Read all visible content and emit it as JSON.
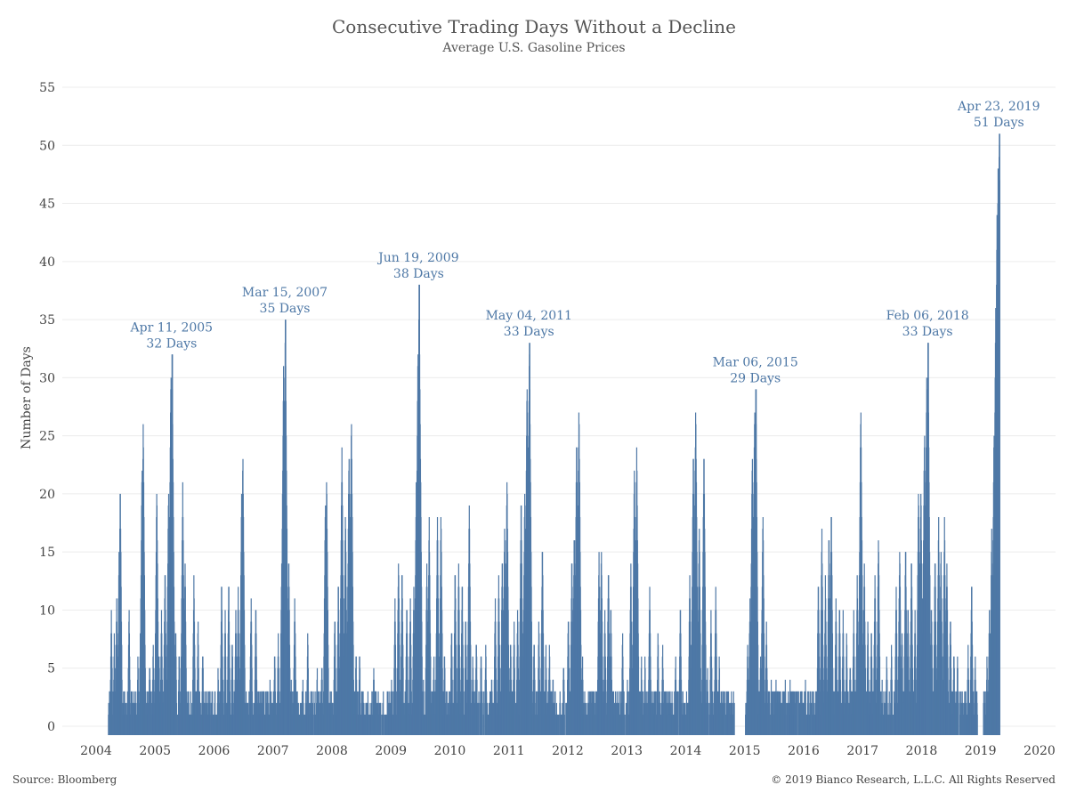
{
  "chart_data": {
    "type": "bar",
    "title": "Consecutive Trading Days Without a Decline",
    "subtitle": "Average U.S. Gasoline Prices",
    "ylabel": "Number of Days",
    "xlabel": "",
    "ylim": [
      0,
      55
    ],
    "xlim": [
      2004.0,
      2020.0
    ],
    "y_ticks": [
      "0",
      "5",
      "10",
      "15",
      "20",
      "25",
      "30",
      "35",
      "40",
      "45",
      "50",
      "55"
    ],
    "x_ticks": [
      "2004",
      "2005",
      "2006",
      "2007",
      "2008",
      "2009",
      "2010",
      "2011",
      "2012",
      "2013",
      "2014",
      "2015",
      "2016",
      "2017",
      "2018",
      "2019",
      "2020"
    ],
    "grid": true,
    "color": "#4e78a6",
    "peaks": [
      {
        "x": 2005.28,
        "y": 32,
        "date": "Apr 11, 2005",
        "days": "32 Days"
      },
      {
        "x": 2007.2,
        "y": 35,
        "date": "Mar 15, 2007",
        "days": "35 Days"
      },
      {
        "x": 2009.47,
        "y": 38,
        "date": "Jun 19, 2009",
        "days": "38 Days"
      },
      {
        "x": 2011.34,
        "y": 33,
        "date": "May 04, 2011",
        "days": "33 Days"
      },
      {
        "x": 2015.18,
        "y": 29,
        "date": "Mar 06, 2015",
        "days": "29 Days"
      },
      {
        "x": 2018.1,
        "y": 33,
        "date": "Feb 06, 2018",
        "days": "33 Days"
      },
      {
        "x": 2019.31,
        "y": 51,
        "date": "Apr 23, 2019",
        "days": "51 Days"
      }
    ],
    "series_points": [
      [
        2004.22,
        3
      ],
      [
        2004.25,
        10
      ],
      [
        2004.3,
        8
      ],
      [
        2004.34,
        11
      ],
      [
        2004.38,
        15
      ],
      [
        2004.4,
        21
      ],
      [
        2004.42,
        3
      ],
      [
        2004.55,
        10
      ],
      [
        2004.58,
        1
      ],
      [
        2004.66,
        3
      ],
      [
        2004.7,
        6
      ],
      [
        2004.74,
        8
      ],
      [
        2004.77,
        23
      ],
      [
        2004.79,
        26
      ],
      [
        2004.86,
        3
      ],
      [
        2004.9,
        6
      ],
      [
        2004.96,
        7
      ],
      [
        2005.02,
        21
      ],
      [
        2005.06,
        6
      ],
      [
        2005.1,
        10
      ],
      [
        2005.16,
        14
      ],
      [
        2005.22,
        21
      ],
      [
        2005.26,
        31
      ],
      [
        2005.28,
        32
      ],
      [
        2005.34,
        9
      ],
      [
        2005.4,
        7
      ],
      [
        2005.46,
        21
      ],
      [
        2005.5,
        14
      ],
      [
        2005.56,
        3
      ],
      [
        2005.65,
        13
      ],
      [
        2005.72,
        9
      ],
      [
        2005.8,
        7
      ],
      [
        2005.9,
        3
      ],
      [
        2005.98,
        1
      ],
      [
        2006.06,
        5
      ],
      [
        2006.12,
        13
      ],
      [
        2006.18,
        10
      ],
      [
        2006.24,
        13
      ],
      [
        2006.3,
        8
      ],
      [
        2006.36,
        10
      ],
      [
        2006.4,
        12
      ],
      [
        2006.46,
        21
      ],
      [
        2006.48,
        24
      ],
      [
        2006.55,
        2
      ],
      [
        2006.62,
        11
      ],
      [
        2006.7,
        11
      ],
      [
        2006.78,
        3
      ],
      [
        2006.86,
        1
      ],
      [
        2006.94,
        4
      ],
      [
        2007.02,
        7
      ],
      [
        2007.08,
        8
      ],
      [
        2007.14,
        15
      ],
      [
        2007.17,
        31
      ],
      [
        2007.2,
        35
      ],
      [
        2007.26,
        14
      ],
      [
        2007.3,
        4
      ],
      [
        2007.36,
        11
      ],
      [
        2007.42,
        2
      ],
      [
        2007.5,
        4
      ],
      [
        2007.58,
        8
      ],
      [
        2007.66,
        2
      ],
      [
        2007.74,
        5
      ],
      [
        2007.82,
        6
      ],
      [
        2007.88,
        20
      ],
      [
        2007.9,
        22
      ],
      [
        2007.98,
        3
      ],
      [
        2008.04,
        10
      ],
      [
        2008.1,
        13
      ],
      [
        2008.16,
        24
      ],
      [
        2008.22,
        19
      ],
      [
        2008.28,
        24
      ],
      [
        2008.32,
        27
      ],
      [
        2008.4,
        7
      ],
      [
        2008.46,
        7
      ],
      [
        2008.52,
        3
      ],
      [
        2008.6,
        3
      ],
      [
        2008.7,
        5
      ],
      [
        2008.8,
        2
      ],
      [
        2008.9,
        1
      ],
      [
        2009.0,
        4
      ],
      [
        2009.06,
        11
      ],
      [
        2009.12,
        15
      ],
      [
        2009.18,
        14
      ],
      [
        2009.26,
        11
      ],
      [
        2009.32,
        11
      ],
      [
        2009.38,
        12
      ],
      [
        2009.42,
        21
      ],
      [
        2009.45,
        33
      ],
      [
        2009.47,
        38
      ],
      [
        2009.54,
        4
      ],
      [
        2009.6,
        14
      ],
      [
        2009.64,
        18
      ],
      [
        2009.72,
        6
      ],
      [
        2009.78,
        18
      ],
      [
        2009.84,
        19
      ],
      [
        2009.9,
        7
      ],
      [
        2009.96,
        2
      ],
      [
        2010.02,
        9
      ],
      [
        2010.08,
        14
      ],
      [
        2010.14,
        14
      ],
      [
        2010.2,
        13
      ],
      [
        2010.26,
        10
      ],
      [
        2010.32,
        19
      ],
      [
        2010.38,
        6
      ],
      [
        2010.44,
        8
      ],
      [
        2010.52,
        7
      ],
      [
        2010.6,
        7
      ],
      [
        2010.7,
        5
      ],
      [
        2010.76,
        11
      ],
      [
        2010.82,
        13
      ],
      [
        2010.88,
        15
      ],
      [
        2010.92,
        18
      ],
      [
        2010.96,
        22
      ],
      [
        2011.02,
        8
      ],
      [
        2011.08,
        9
      ],
      [
        2011.14,
        10
      ],
      [
        2011.2,
        20
      ],
      [
        2011.26,
        20
      ],
      [
        2011.3,
        30
      ],
      [
        2011.34,
        33
      ],
      [
        2011.42,
        8
      ],
      [
        2011.5,
        9
      ],
      [
        2011.56,
        16
      ],
      [
        2011.62,
        7
      ],
      [
        2011.68,
        7
      ],
      [
        2011.74,
        5
      ],
      [
        2011.8,
        2
      ],
      [
        2011.86,
        3
      ],
      [
        2011.92,
        6
      ],
      [
        2012.0,
        10
      ],
      [
        2012.06,
        15
      ],
      [
        2012.1,
        17
      ],
      [
        2012.14,
        25
      ],
      [
        2012.18,
        28
      ],
      [
        2012.24,
        6
      ],
      [
        2012.3,
        2
      ],
      [
        2012.36,
        3
      ],
      [
        2012.44,
        3
      ],
      [
        2012.52,
        15
      ],
      [
        2012.56,
        16
      ],
      [
        2012.62,
        10
      ],
      [
        2012.68,
        14
      ],
      [
        2012.72,
        11
      ],
      [
        2012.8,
        3
      ],
      [
        2012.86,
        3
      ],
      [
        2012.92,
        8
      ],
      [
        2013.0,
        4
      ],
      [
        2013.06,
        14
      ],
      [
        2013.12,
        23
      ],
      [
        2013.16,
        24
      ],
      [
        2013.24,
        6
      ],
      [
        2013.3,
        6
      ],
      [
        2013.38,
        12
      ],
      [
        2013.44,
        3
      ],
      [
        2013.52,
        8
      ],
      [
        2013.6,
        7
      ],
      [
        2013.66,
        3
      ],
      [
        2013.74,
        2
      ],
      [
        2013.82,
        6
      ],
      [
        2013.9,
        11
      ],
      [
        2013.98,
        2
      ],
      [
        2014.06,
        13
      ],
      [
        2014.12,
        24
      ],
      [
        2014.16,
        28
      ],
      [
        2014.22,
        18
      ],
      [
        2014.3,
        24
      ],
      [
        2014.36,
        5
      ],
      [
        2014.42,
        10
      ],
      [
        2014.5,
        12
      ],
      [
        2014.56,
        6
      ],
      [
        2014.62,
        3
      ],
      [
        2014.7,
        3
      ],
      [
        2014.78,
        2
      ],
      [
        2015.04,
        7
      ],
      [
        2015.08,
        11
      ],
      [
        2015.12,
        24
      ],
      [
        2015.16,
        28
      ],
      [
        2015.18,
        29
      ],
      [
        2015.26,
        6
      ],
      [
        2015.3,
        19
      ],
      [
        2015.36,
        9
      ],
      [
        2015.44,
        4
      ],
      [
        2015.52,
        4
      ],
      [
        2015.6,
        3
      ],
      [
        2015.68,
        4
      ],
      [
        2015.76,
        4
      ],
      [
        2015.84,
        3
      ],
      [
        2015.92,
        2
      ],
      [
        2016.02,
        4
      ],
      [
        2016.1,
        3
      ],
      [
        2016.16,
        3
      ],
      [
        2016.24,
        13
      ],
      [
        2016.3,
        17
      ],
      [
        2016.36,
        13
      ],
      [
        2016.42,
        17
      ],
      [
        2016.46,
        19
      ],
      [
        2016.54,
        11
      ],
      [
        2016.6,
        11
      ],
      [
        2016.66,
        10
      ],
      [
        2016.72,
        8
      ],
      [
        2016.78,
        6
      ],
      [
        2016.84,
        10
      ],
      [
        2016.9,
        13
      ],
      [
        2016.96,
        28
      ],
      [
        2017.02,
        14
      ],
      [
        2017.08,
        9
      ],
      [
        2017.14,
        9
      ],
      [
        2017.2,
        13
      ],
      [
        2017.26,
        17
      ],
      [
        2017.32,
        4
      ],
      [
        2017.4,
        6
      ],
      [
        2017.48,
        7
      ],
      [
        2017.56,
        12
      ],
      [
        2017.62,
        16
      ],
      [
        2017.66,
        8
      ],
      [
        2017.72,
        16
      ],
      [
        2017.76,
        11
      ],
      [
        2017.82,
        15
      ],
      [
        2017.88,
        10
      ],
      [
        2017.94,
        21
      ],
      [
        2017.98,
        21
      ],
      [
        2018.04,
        26
      ],
      [
        2018.08,
        31
      ],
      [
        2018.1,
        33
      ],
      [
        2018.16,
        10
      ],
      [
        2018.22,
        15
      ],
      [
        2018.28,
        18
      ],
      [
        2018.32,
        16
      ],
      [
        2018.38,
        18
      ],
      [
        2018.42,
        14
      ],
      [
        2018.48,
        10
      ],
      [
        2018.54,
        7
      ],
      [
        2018.6,
        6
      ],
      [
        2018.66,
        3
      ],
      [
        2018.72,
        3
      ],
      [
        2018.78,
        7
      ],
      [
        2018.84,
        13
      ],
      [
        2018.9,
        6
      ],
      [
        2019.06,
        3
      ],
      [
        2019.1,
        6
      ],
      [
        2019.14,
        10
      ],
      [
        2019.18,
        17
      ],
      [
        2019.22,
        26
      ],
      [
        2019.25,
        37
      ],
      [
        2019.27,
        44
      ],
      [
        2019.29,
        49
      ],
      [
        2019.31,
        51
      ]
    ]
  },
  "footer": {
    "source": "Source: Bloomberg",
    "copyright": "© 2019 Bianco Research, L.L.C. All Rights Reserved"
  }
}
